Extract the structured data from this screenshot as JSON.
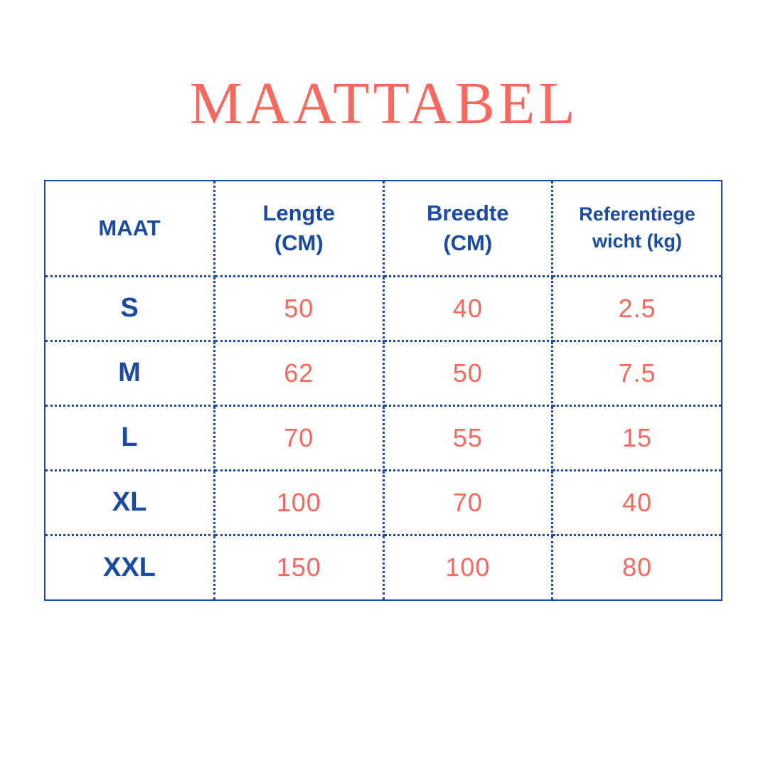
{
  "colors": {
    "blue": "#1b4aa2",
    "coral": "#f7685f",
    "background": "#ffffff"
  },
  "title": "MAATTABEL",
  "chart_data": {
    "type": "table",
    "title": "MAATTABEL",
    "columns": [
      "MAAT",
      "Lengte (CM)",
      "Breedte (CM)",
      "Referentiegewicht (kg)"
    ],
    "rows": [
      [
        "S",
        "50",
        "40",
        "2.5"
      ],
      [
        "M",
        "62",
        "50",
        "7.5"
      ],
      [
        "L",
        "70",
        "55",
        "15"
      ],
      [
        "XL",
        "100",
        "70",
        "40"
      ],
      [
        "XXL",
        "150",
        "100",
        "80"
      ]
    ]
  },
  "table": {
    "headers": [
      {
        "line1": "MAAT",
        "line2": ""
      },
      {
        "line1": "Lengte",
        "line2": "(CM)"
      },
      {
        "line1": "Breedte",
        "line2": "(CM)"
      },
      {
        "line1": "Referentiege",
        "line2": "wicht (kg)"
      }
    ],
    "rows": [
      {
        "size": "S",
        "lengte": "50",
        "breedte": "40",
        "gewicht": "2.5"
      },
      {
        "size": "M",
        "lengte": "62",
        "breedte": "50",
        "gewicht": "7.5"
      },
      {
        "size": "L",
        "lengte": "70",
        "breedte": "55",
        "gewicht": "15"
      },
      {
        "size": "XL",
        "lengte": "100",
        "breedte": "70",
        "gewicht": "40"
      },
      {
        "size": "XXL",
        "lengte": "150",
        "breedte": "100",
        "gewicht": "80"
      }
    ]
  }
}
